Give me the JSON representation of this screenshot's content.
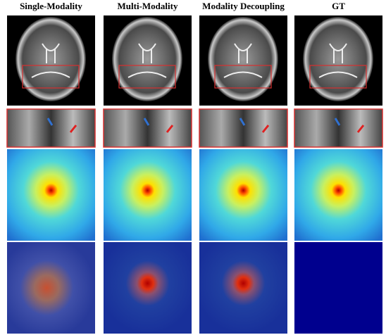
{
  "header": {
    "columns": [
      "Single-Modality",
      "Multi-Modality",
      "Modality Decoupling",
      "GT"
    ]
  }
}
